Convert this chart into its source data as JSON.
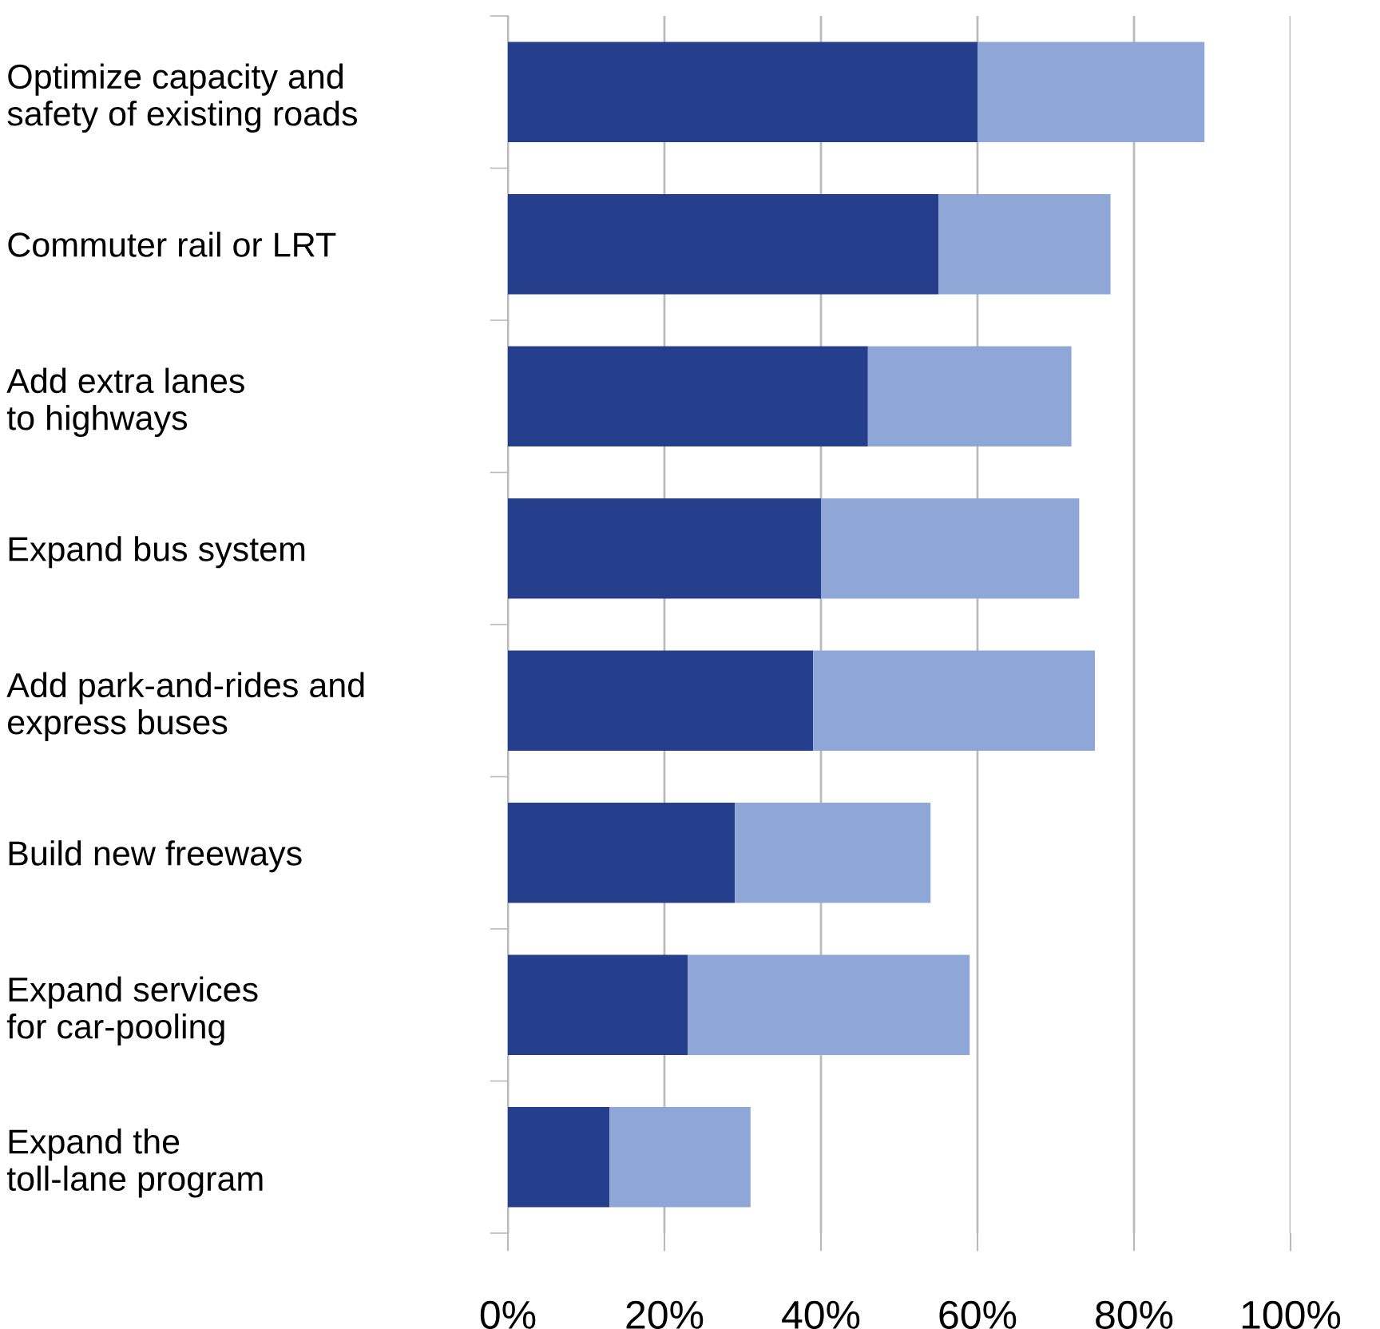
{
  "chart_data": {
    "type": "bar",
    "orientation": "horizontal",
    "stacked": true,
    "categories": [
      "Optimize capacity and\nsafety of existing roads",
      "Commuter rail or LRT",
      "Add extra lanes\nto highways",
      "Expand bus system",
      "Add park-and-rides and\nexpress buses",
      "Build new freeways",
      "Expand services\nfor car-pooling",
      "Expand the\ntoll-lane program"
    ],
    "series": [
      {
        "color": "#253f8d",
        "values": [
          60,
          55,
          46,
          40,
          39,
          29,
          23,
          13
        ]
      },
      {
        "color": "#8fa7d6",
        "values": [
          29,
          22,
          26,
          33,
          36,
          25,
          36,
          18
        ]
      }
    ],
    "xlim": [
      0,
      100
    ],
    "xticks": [
      {
        "value": 0,
        "label": "0%"
      },
      {
        "value": 20,
        "label": "20%"
      },
      {
        "value": 40,
        "label": "40%"
      },
      {
        "value": 60,
        "label": "60%"
      },
      {
        "value": 80,
        "label": "80%"
      },
      {
        "value": 100,
        "label": "100%"
      }
    ],
    "grid": "x",
    "legend": false
  }
}
